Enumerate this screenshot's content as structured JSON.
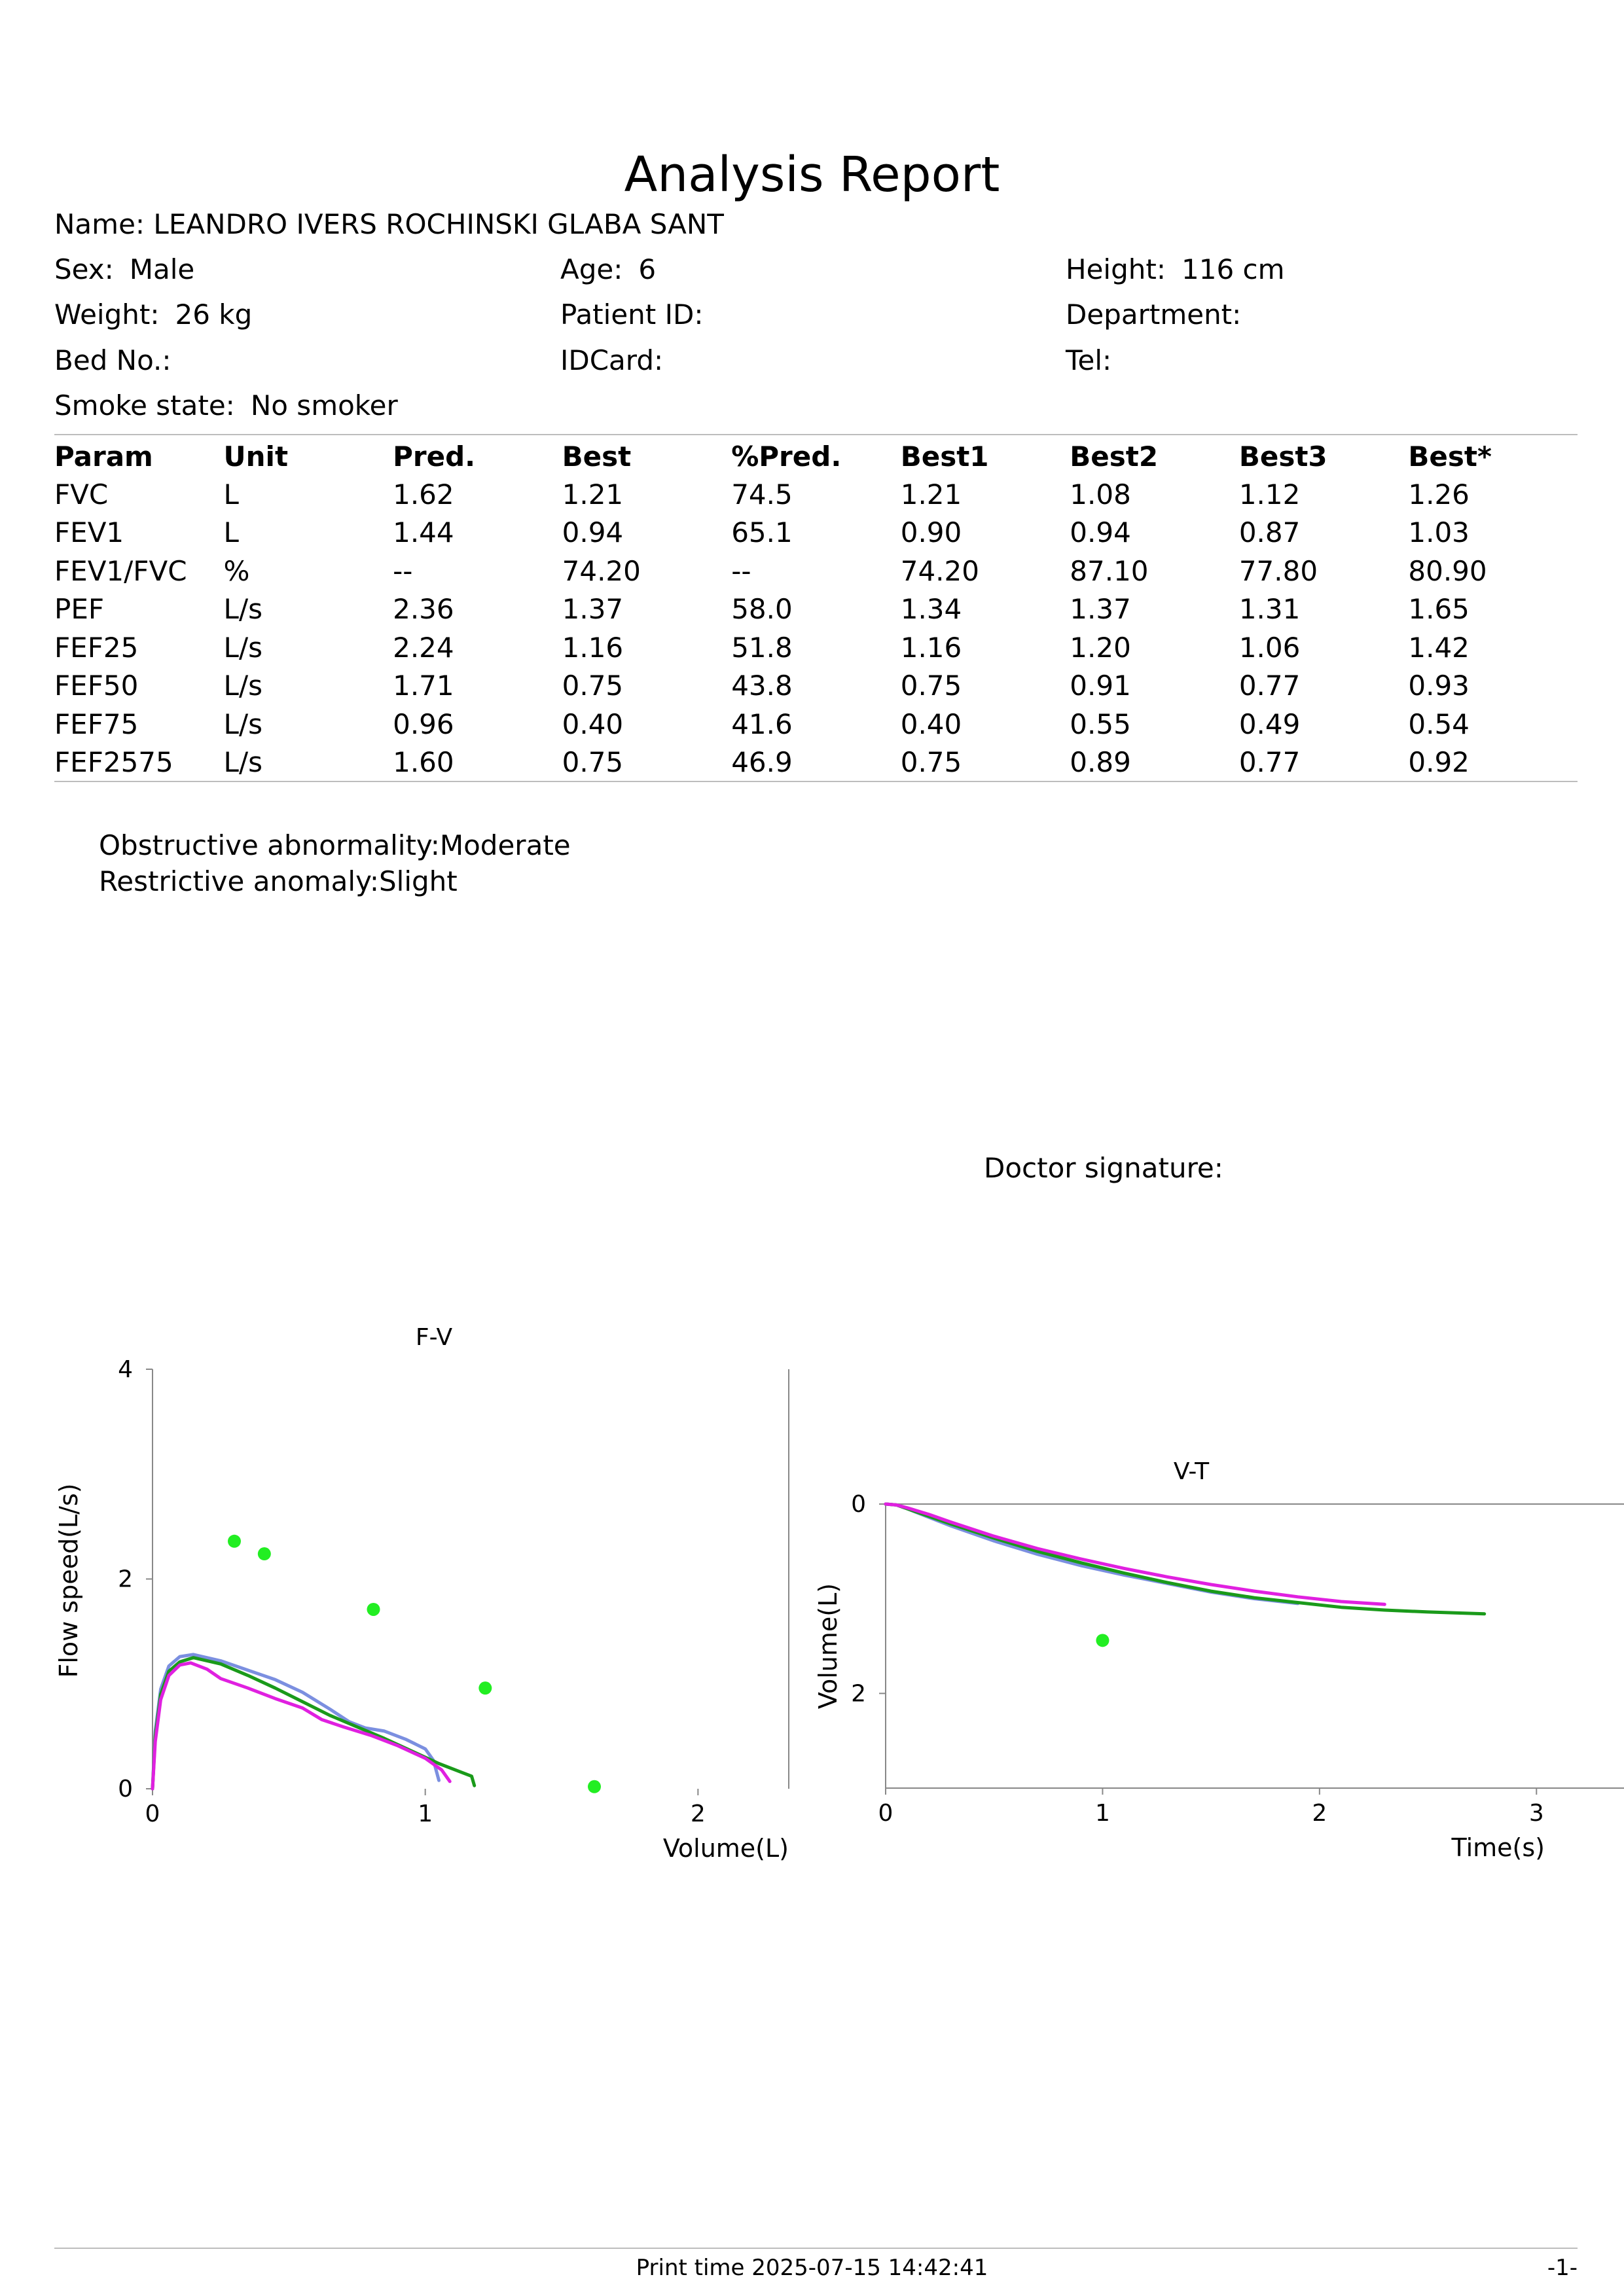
{
  "title": "Analysis Report",
  "patient": {
    "name_label": "Name:",
    "name": "LEANDRO IVERS ROCHINSKI GLABA SANT",
    "sex_label": "Sex:",
    "sex": "Male",
    "age_label": "Age:",
    "age": "6",
    "height_label": "Height:",
    "height": "116 cm",
    "weight_label": "Weight:",
    "weight": "26 kg",
    "patient_id_label": "Patient ID:",
    "patient_id": "",
    "department_label": "Department:",
    "department": "",
    "bed_label": "Bed No.:",
    "bed": "",
    "idcard_label": "IDCard:",
    "idcard": "",
    "tel_label": "Tel:",
    "tel": "",
    "smoke_label": "Smoke state:",
    "smoke": "No smoker"
  },
  "table": {
    "headers": [
      "Param",
      "Unit",
      "Pred.",
      "Best",
      "%Pred.",
      "Best1",
      "Best2",
      "Best3",
      "Best*"
    ],
    "rows": [
      [
        "FVC",
        "L",
        "1.62",
        "1.21",
        "74.5",
        "1.21",
        "1.08",
        "1.12",
        "1.26"
      ],
      [
        "FEV1",
        "L",
        "1.44",
        "0.94",
        "65.1",
        "0.90",
        "0.94",
        "0.87",
        "1.03"
      ],
      [
        "FEV1/FVC",
        "%",
        "--",
        "74.20",
        "--",
        "74.20",
        "87.10",
        "77.80",
        "80.90"
      ],
      [
        "PEF",
        "L/s",
        "2.36",
        "1.37",
        "58.0",
        "1.34",
        "1.37",
        "1.31",
        "1.65"
      ],
      [
        "FEF25",
        "L/s",
        "2.24",
        "1.16",
        "51.8",
        "1.16",
        "1.20",
        "1.06",
        "1.42"
      ],
      [
        "FEF50",
        "L/s",
        "1.71",
        "0.75",
        "43.8",
        "0.75",
        "0.91",
        "0.77",
        "0.93"
      ],
      [
        "FEF75",
        "L/s",
        "0.96",
        "0.40",
        "41.6",
        "0.40",
        "0.55",
        "0.49",
        "0.54"
      ],
      [
        "FEF2575",
        "L/s",
        "1.60",
        "0.75",
        "46.9",
        "0.75",
        "0.89",
        "0.77",
        "0.92"
      ]
    ]
  },
  "interpretation": [
    "Obstructive abnormality:Moderate",
    "Restrictive anomaly:Slight"
  ],
  "doctor_signature_label": "Doctor signature:",
  "colors": {
    "trial1": "#7b8fe0",
    "trial2": "#1a9a1a",
    "trial3": "#e020e0",
    "predicted": "#22ee22",
    "axis": "#888888"
  },
  "chart_data": [
    {
      "type": "line",
      "title": "F-V",
      "xlabel": "Volume(L)",
      "ylabel": "Flow speed(L/s)",
      "xlim": [
        0,
        2.4
      ],
      "ylim": [
        0,
        4
      ],
      "xticks": [
        "0",
        "1",
        "2"
      ],
      "yticks": [
        "0",
        "2",
        "4"
      ],
      "series": [
        {
          "color_key": "trial1",
          "points": [
            [
              0,
              0
            ],
            [
              0.01,
              0.55
            ],
            [
              0.03,
              0.95
            ],
            [
              0.06,
              1.17
            ],
            [
              0.1,
              1.26
            ],
            [
              0.15,
              1.28
            ],
            [
              0.25,
              1.22
            ],
            [
              0.35,
              1.13
            ],
            [
              0.45,
              1.04
            ],
            [
              0.55,
              0.92
            ],
            [
              0.65,
              0.76
            ],
            [
              0.72,
              0.64
            ],
            [
              0.78,
              0.58
            ],
            [
              0.85,
              0.55
            ],
            [
              0.93,
              0.47
            ],
            [
              1.0,
              0.38
            ],
            [
              1.03,
              0.27
            ],
            [
              1.05,
              0.08
            ]
          ]
        },
        {
          "color_key": "trial2",
          "points": [
            [
              0,
              0
            ],
            [
              0.01,
              0.5
            ],
            [
              0.03,
              0.9
            ],
            [
              0.06,
              1.12
            ],
            [
              0.1,
              1.21
            ],
            [
              0.15,
              1.25
            ],
            [
              0.25,
              1.19
            ],
            [
              0.35,
              1.08
            ],
            [
              0.45,
              0.96
            ],
            [
              0.55,
              0.83
            ],
            [
              0.65,
              0.7
            ],
            [
              0.75,
              0.59
            ],
            [
              0.85,
              0.48
            ],
            [
              0.95,
              0.36
            ],
            [
              1.05,
              0.24
            ],
            [
              1.12,
              0.17
            ],
            [
              1.17,
              0.12
            ],
            [
              1.18,
              0.03
            ]
          ]
        },
        {
          "color_key": "trial3",
          "points": [
            [
              0,
              0
            ],
            [
              0.01,
              0.45
            ],
            [
              0.03,
              0.85
            ],
            [
              0.06,
              1.08
            ],
            [
              0.1,
              1.18
            ],
            [
              0.14,
              1.2
            ],
            [
              0.2,
              1.14
            ],
            [
              0.25,
              1.05
            ],
            [
              0.35,
              0.96
            ],
            [
              0.45,
              0.86
            ],
            [
              0.55,
              0.77
            ],
            [
              0.62,
              0.66
            ],
            [
              0.7,
              0.59
            ],
            [
              0.8,
              0.51
            ],
            [
              0.9,
              0.41
            ],
            [
              1.0,
              0.29
            ],
            [
              1.06,
              0.18
            ],
            [
              1.09,
              0.07
            ]
          ]
        }
      ],
      "predicted_points": [
        [
          0.3,
          2.36
        ],
        [
          0.41,
          2.24
        ],
        [
          0.81,
          1.71
        ],
        [
          1.22,
          0.96
        ],
        [
          1.62,
          0.02
        ]
      ]
    },
    {
      "type": "line",
      "title": "V-T",
      "xlabel": "Time(s)",
      "ylabel": "Volume(L)",
      "xlim": [
        0,
        3.5
      ],
      "ylim": [
        0,
        3
      ],
      "xticks": [
        "0",
        "1",
        "2",
        "3"
      ],
      "yticks": [
        "0",
        "2"
      ],
      "series": [
        {
          "color_key": "trial1",
          "points": [
            [
              0,
              0
            ],
            [
              0.05,
              0.01
            ],
            [
              0.1,
              0.05
            ],
            [
              0.2,
              0.14
            ],
            [
              0.3,
              0.23
            ],
            [
              0.5,
              0.39
            ],
            [
              0.7,
              0.53
            ],
            [
              0.9,
              0.65
            ],
            [
              1.1,
              0.75
            ],
            [
              1.3,
              0.84
            ],
            [
              1.5,
              0.93
            ],
            [
              1.7,
              1.0
            ],
            [
              1.9,
              1.05
            ]
          ]
        },
        {
          "color_key": "trial2",
          "points": [
            [
              0,
              0
            ],
            [
              0.05,
              0.01
            ],
            [
              0.1,
              0.05
            ],
            [
              0.2,
              0.13
            ],
            [
              0.3,
              0.21
            ],
            [
              0.5,
              0.36
            ],
            [
              0.7,
              0.5
            ],
            [
              0.9,
              0.62
            ],
            [
              1.1,
              0.73
            ],
            [
              1.3,
              0.83
            ],
            [
              1.5,
              0.92
            ],
            [
              1.7,
              0.99
            ],
            [
              1.9,
              1.04
            ],
            [
              2.1,
              1.09
            ],
            [
              2.3,
              1.12
            ],
            [
              2.5,
              1.14
            ],
            [
              2.76,
              1.16
            ]
          ]
        },
        {
          "color_key": "trial3",
          "points": [
            [
              0,
              0
            ],
            [
              0.05,
              0.01
            ],
            [
              0.1,
              0.04
            ],
            [
              0.2,
              0.11
            ],
            [
              0.3,
              0.19
            ],
            [
              0.5,
              0.34
            ],
            [
              0.7,
              0.47
            ],
            [
              0.9,
              0.58
            ],
            [
              1.1,
              0.68
            ],
            [
              1.3,
              0.77
            ],
            [
              1.5,
              0.85
            ],
            [
              1.7,
              0.92
            ],
            [
              1.9,
              0.98
            ],
            [
              2.1,
              1.03
            ],
            [
              2.3,
              1.06
            ]
          ]
        }
      ],
      "predicted_points": [
        [
          1.0,
          1.44
        ]
      ]
    }
  ],
  "footer": {
    "print_time": "Print time 2025-07-15 14:42:41",
    "page": "-1-"
  }
}
